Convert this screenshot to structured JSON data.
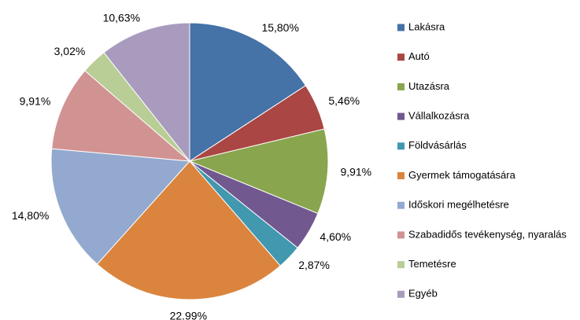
{
  "chart_data": {
    "type": "pie",
    "categories": [
      "Lakásra",
      "Autó",
      "Utazásra",
      "Vállalkozásra",
      "Földvásárlás",
      "Gyermek támogatására",
      "Időskori megélhetésre",
      "Szabadidős tevékenység, nyaralás",
      "Temetésre",
      "Egyéb"
    ],
    "values": [
      15.8,
      5.46,
      9.91,
      4.6,
      2.87,
      22.99,
      14.8,
      9.91,
      3.02,
      10.63
    ],
    "value_labels": [
      "15,80%",
      "5,46%",
      "9,91%",
      "4,60%",
      "2,87%",
      "22.99%",
      "14,80%",
      "9,91%",
      "3,02%",
      "10,63%"
    ],
    "colors": [
      "#4572A7",
      "#AA4643",
      "#89A54E",
      "#71588F",
      "#4198AF",
      "#DB843D",
      "#93A9CF",
      "#D19392",
      "#B9CD96",
      "#A99BBD"
    ],
    "legend": "right"
  }
}
